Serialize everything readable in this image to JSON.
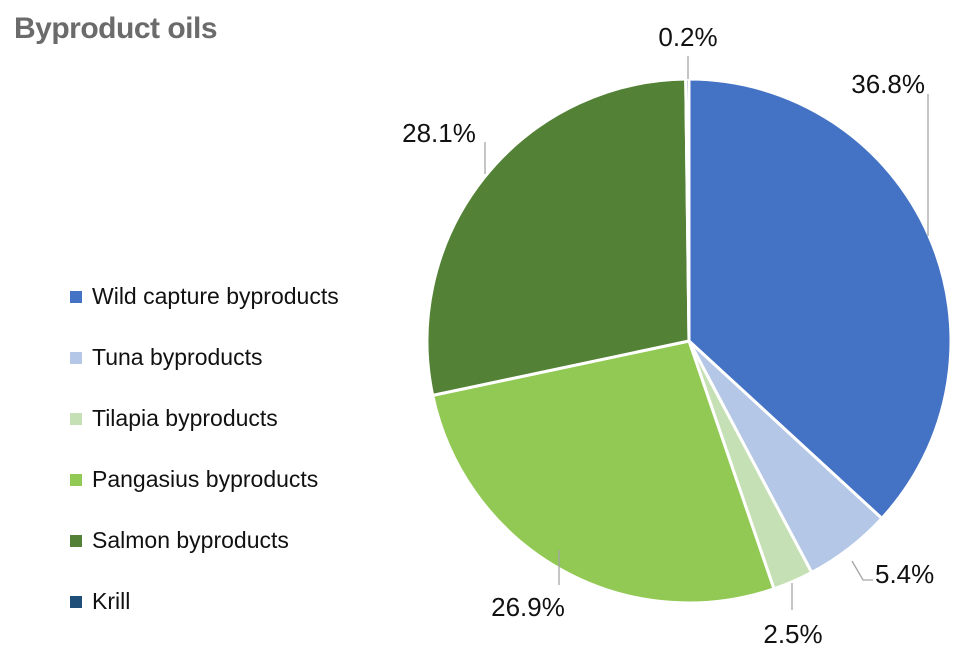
{
  "chart_data": {
    "type": "pie",
    "title": "Byproduct oils",
    "legend_position": "left",
    "slices": [
      {
        "label": "Wild capture byproducts",
        "value": 36.8,
        "display": "36.8%",
        "color": "#4472c4"
      },
      {
        "label": "Tuna byproducts",
        "value": 5.4,
        "display": "5.4%",
        "color": "#b4c7e7"
      },
      {
        "label": "Tilapia byproducts",
        "value": 2.5,
        "display": "2.5%",
        "color": "#c5e0b4"
      },
      {
        "label": "Pangasius byproducts",
        "value": 26.9,
        "display": "26.9%",
        "color": "#92c955"
      },
      {
        "label": "Salmon byproducts",
        "value": 28.1,
        "display": "28.1%",
        "color": "#538135"
      },
      {
        "label": "Krill",
        "value": 0.2,
        "display": "0.2%",
        "color": "#1f4e79"
      }
    ]
  }
}
